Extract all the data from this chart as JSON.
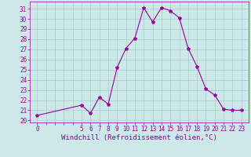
{
  "x": [
    0,
    5,
    6,
    7,
    8,
    9,
    10,
    11,
    12,
    13,
    14,
    15,
    16,
    17,
    18,
    19,
    20,
    21,
    22,
    23
  ],
  "y": [
    20.5,
    21.5,
    20.7,
    22.3,
    21.6,
    25.2,
    27.1,
    28.1,
    31.1,
    29.7,
    31.1,
    30.8,
    30.1,
    27.1,
    25.3,
    23.1,
    22.5,
    21.1,
    21.0,
    21.0
  ],
  "line_color": "#990099",
  "marker": "*",
  "bg_color": "#cce8e8",
  "grid_color": "#aacccc",
  "xlabel": "Windchill (Refroidissement éolien,°C)",
  "ylabel_ticks": [
    20,
    21,
    22,
    23,
    24,
    25,
    26,
    27,
    28,
    29,
    30,
    31
  ],
  "ylim": [
    19.8,
    31.7
  ],
  "xlim": [
    -0.8,
    23.8
  ],
  "label_fontsize": 6.5,
  "tick_fontsize": 5.5
}
